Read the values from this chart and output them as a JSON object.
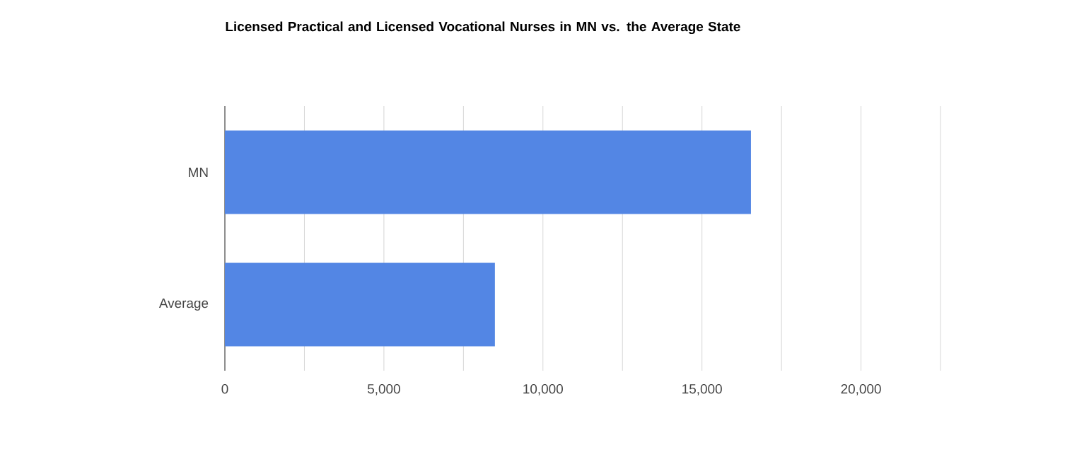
{
  "chart_data": {
    "type": "bar",
    "orientation": "horizontal",
    "title": "Licensed Practical and Licensed Vocational Nurses in MN vs. the Average State",
    "categories": [
      "MN",
      "Average"
    ],
    "values": [
      16540,
      8490
    ],
    "color": "#5386e4",
    "xlim": [
      0,
      22500
    ],
    "xticks": [
      0,
      {
        "value": 2500,
        "label": null
      },
      {
        "value": 5000,
        "label": "5,000"
      },
      {
        "value": 7500,
        "label": null
      },
      {
        "value": 10000,
        "label": "10,000"
      },
      {
        "value": 12500,
        "label": null
      },
      {
        "value": 15000,
        "label": "15,000"
      },
      {
        "value": 17500,
        "label": null
      },
      {
        "value": 20000,
        "label": "20,000"
      },
      {
        "value": 22500,
        "label": null
      }
    ],
    "grid": "x"
  }
}
